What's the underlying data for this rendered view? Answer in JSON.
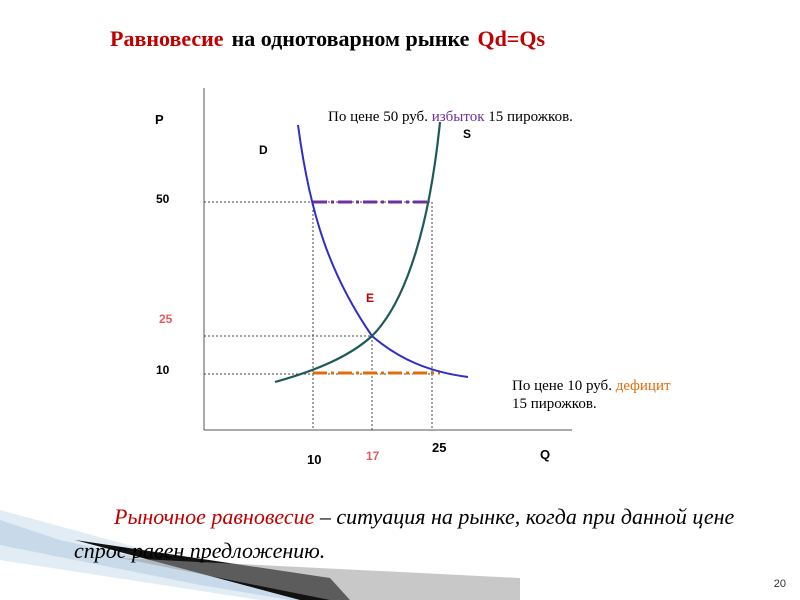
{
  "title": {
    "term": "Равновесие",
    "rest": "на однотоварном рынке",
    "formula": "Qd=Qs"
  },
  "notes": {
    "surplus": {
      "before": "По цене 50 руб.",
      "highlight": "избыток",
      "after": "15 пирожков."
    },
    "deficit": {
      "line1_before": "По цене 10 руб.",
      "highlight": "дефицит",
      "line2": "15 пирожков."
    }
  },
  "chart_data": {
    "type": "line",
    "axis_labels": {
      "y": "P",
      "x": "Q"
    },
    "curve_labels": {
      "demand": "D",
      "supply": "S",
      "equilibrium": "E"
    },
    "y_ticks": [
      "50",
      "25",
      "10"
    ],
    "x_ticks": [
      "10",
      "17",
      "25"
    ],
    "points": {
      "equilibrium": {
        "q": 17,
        "p": 25
      },
      "surplus": {
        "p": 50,
        "qd": 10,
        "qs": 25
      },
      "deficit": {
        "p": 10,
        "qs": 10,
        "qd": 25
      }
    },
    "colors": {
      "demand": "#2e2ecc",
      "supply": "#1f5a5a",
      "surplus_line": "#7030a0",
      "deficit_line": "#e36c09",
      "equilibrium_label": "#c00000",
      "guides": "#444444"
    }
  },
  "definition": {
    "term": "Рыночное равновесие",
    "text": " – ситуация на рынке, когда при данной цене спрос равен предложению."
  },
  "page_number": "20"
}
